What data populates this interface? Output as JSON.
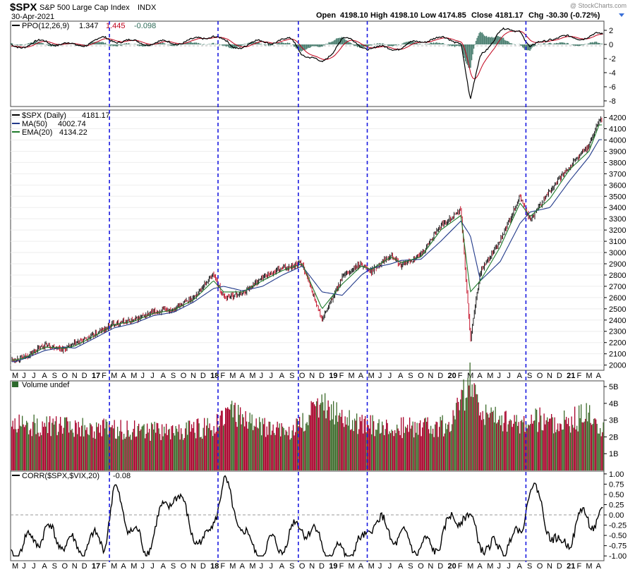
{
  "header": {
    "symbol": "$SPX",
    "name": "S&P 500 Large Cap Index",
    "exchange": "INDX",
    "date": "30-Apr-2021",
    "watermark": "@ StockCharts.com",
    "open_label": "Open",
    "open": "4198.10",
    "high_label": "High",
    "high": "4198.10",
    "low_label": "Low",
    "low": "4174.85",
    "close_label": "Close",
    "close": "4181.17",
    "chg_label": "Chg",
    "chg": "-30.30 (-0.72%)"
  },
  "panels": {
    "ppo": {
      "label": "PPO(12,26,9)",
      "v1": "1.347",
      "v2": "1.445",
      "v3": "-0.098"
    },
    "price": {
      "label": "$SPX (Daily)",
      "value": "4181.17",
      "ma_label": "MA(50)",
      "ma_value": "4002.74",
      "ema_label": "EMA(20)",
      "ema_value": "4134.22"
    },
    "volume": {
      "label": "Volume undef"
    },
    "corr": {
      "label": "CORR($SPX,$VIX,20)",
      "value": "-0.08"
    }
  },
  "chart_data": [
    {
      "type": "line",
      "title": "PPO(12,26,9)",
      "ylim": [
        -8.5,
        3
      ],
      "y_ticks": [
        "2",
        "0",
        "-2",
        "-4",
        "-6",
        "-8"
      ],
      "x": [
        "2016-05",
        "2016-08",
        "2016-11",
        "2017-02",
        "2017-05",
        "2017-08",
        "2017-11",
        "2018-01",
        "2018-03",
        "2018-06",
        "2018-09",
        "2018-10",
        "2018-12",
        "2019-02",
        "2019-05",
        "2019-08",
        "2019-11",
        "2020-02",
        "2020-03",
        "2020-04",
        "2020-06",
        "2020-08",
        "2020-09",
        "2020-11",
        "2021-01",
        "2021-04"
      ],
      "series": [
        {
          "name": "PPO",
          "values": [
            -0.3,
            0.4,
            -0.2,
            0.8,
            0.3,
            0.2,
            0.5,
            1.4,
            -0.4,
            0.4,
            0.6,
            -1.2,
            -2.8,
            0.9,
            -0.6,
            -0.4,
            0.9,
            0.5,
            -8.2,
            -1.5,
            1.8,
            2.2,
            -0.6,
            1.0,
            0.9,
            1.3
          ]
        }
      ]
    },
    {
      "type": "line",
      "title": "$SPX (Daily)",
      "ylim": [
        1960,
        4260
      ],
      "y_ticks": [
        "4200",
        "4100",
        "4000",
        "3900",
        "3800",
        "3700",
        "3600",
        "3500",
        "3400",
        "3300",
        "3200",
        "3100",
        "3000",
        "2900",
        "2800",
        "2700",
        "2600",
        "2500",
        "2400",
        "2300",
        "2200",
        "2100",
        "2000"
      ],
      "x_ticks": [
        "M",
        "J",
        "J",
        "A",
        "S",
        "O",
        "N",
        "D",
        "17",
        "F",
        "M",
        "A",
        "M",
        "J",
        "J",
        "A",
        "S",
        "O",
        "N",
        "D",
        "18",
        "F",
        "M",
        "A",
        "M",
        "J",
        "J",
        "A",
        "S",
        "O",
        "N",
        "D",
        "19",
        "F",
        "M",
        "A",
        "M",
        "J",
        "J",
        "A",
        "S",
        "O",
        "N",
        "D",
        "20",
        "F",
        "M",
        "A",
        "M",
        "J",
        "J",
        "A",
        "S",
        "O",
        "N",
        "D",
        "21",
        "F",
        "M",
        "A"
      ],
      "x": [
        "2016-05",
        "2016-06",
        "2016-08",
        "2016-10",
        "2016-11",
        "2017-01",
        "2017-03",
        "2017-05",
        "2017-07",
        "2017-09",
        "2017-11",
        "2018-01",
        "2018-02",
        "2018-04",
        "2018-06",
        "2018-08",
        "2018-10",
        "2018-12",
        "2019-02",
        "2019-04",
        "2019-05",
        "2019-07",
        "2019-08",
        "2019-10",
        "2019-12",
        "2020-02",
        "2020-03",
        "2020-04",
        "2020-06",
        "2020-08",
        "2020-09",
        "2020-11",
        "2021-01",
        "2021-03",
        "2021-04"
      ],
      "series": [
        {
          "name": "$SPX",
          "values": [
            2050,
            2070,
            2180,
            2140,
            2190,
            2270,
            2370,
            2395,
            2470,
            2500,
            2600,
            2810,
            2600,
            2640,
            2780,
            2860,
            2905,
            2400,
            2780,
            2900,
            2830,
            2990,
            2880,
            2980,
            3240,
            3380,
            2230,
            2830,
            3100,
            3500,
            3280,
            3550,
            3770,
            3950,
            4181
          ]
        },
        {
          "name": "MA(50)",
          "values": [
            2030,
            2060,
            2130,
            2160,
            2150,
            2240,
            2330,
            2370,
            2440,
            2470,
            2560,
            2680,
            2700,
            2660,
            2700,
            2800,
            2880,
            2650,
            2620,
            2800,
            2860,
            2900,
            2930,
            2940,
            3100,
            3280,
            3150,
            2750,
            2920,
            3260,
            3360,
            3400,
            3640,
            3850,
            4003
          ]
        },
        {
          "name": "EMA(20)",
          "values": [
            2045,
            2065,
            2160,
            2150,
            2170,
            2260,
            2360,
            2390,
            2460,
            2490,
            2580,
            2750,
            2650,
            2650,
            2750,
            2840,
            2900,
            2500,
            2720,
            2880,
            2850,
            2960,
            2910,
            2960,
            3200,
            3330,
            2650,
            2750,
            3050,
            3440,
            3320,
            3480,
            3740,
            3900,
            4134
          ]
        }
      ]
    },
    {
      "type": "bar",
      "title": "Volume undef",
      "ylim": [
        0,
        5.3
      ],
      "y_ticks": [
        "5B",
        "4B",
        "3B",
        "2B",
        "1B"
      ],
      "x": [
        "2016-05",
        "2016-09",
        "2017-01",
        "2017-05",
        "2017-09",
        "2018-01",
        "2018-02",
        "2018-05",
        "2018-09",
        "2018-12",
        "2019-03",
        "2019-07",
        "2019-10",
        "2020-01",
        "2020-03",
        "2020-04",
        "2020-07",
        "2020-09",
        "2020-12",
        "2021-03",
        "2021-04"
      ],
      "values": [
        2.8,
        2.6,
        2.5,
        2.4,
        2.3,
        2.6,
        3.6,
        2.7,
        2.4,
        3.9,
        2.8,
        2.6,
        2.5,
        2.7,
        5.3,
        3.6,
        2.8,
        3.1,
        2.8,
        3.3,
        2.6
      ]
    },
    {
      "type": "line",
      "title": "CORR($SPX,$VIX,20)",
      "ylim": [
        -1.1,
        1.05
      ],
      "y_ticks": [
        "1.00",
        "0.75",
        "0.50",
        "0.25",
        "0.00",
        "-0.25",
        "-0.50",
        "-0.75",
        "-1.00"
      ],
      "x": [
        "2016-05",
        "2016-08",
        "2016-11",
        "2017-02",
        "2017-03",
        "2017-06",
        "2017-09",
        "2017-12",
        "2018-02",
        "2018-05",
        "2018-08",
        "2018-10",
        "2019-01",
        "2019-04",
        "2019-05",
        "2019-08",
        "2019-11",
        "2020-02",
        "2020-05",
        "2020-08",
        "2020-09",
        "2020-12",
        "2021-02",
        "2021-04"
      ],
      "series": [
        {
          "name": "CORR",
          "values": [
            -0.9,
            -0.4,
            -0.8,
            -0.6,
            0.55,
            -0.9,
            0.6,
            -0.85,
            0.75,
            -0.9,
            -0.7,
            -0.2,
            -0.95,
            -0.8,
            -0.1,
            -0.6,
            -0.85,
            0.1,
            -0.9,
            -0.5,
            0.8,
            -0.9,
            -0.1,
            -0.08
          ]
        }
      ]
    }
  ]
}
